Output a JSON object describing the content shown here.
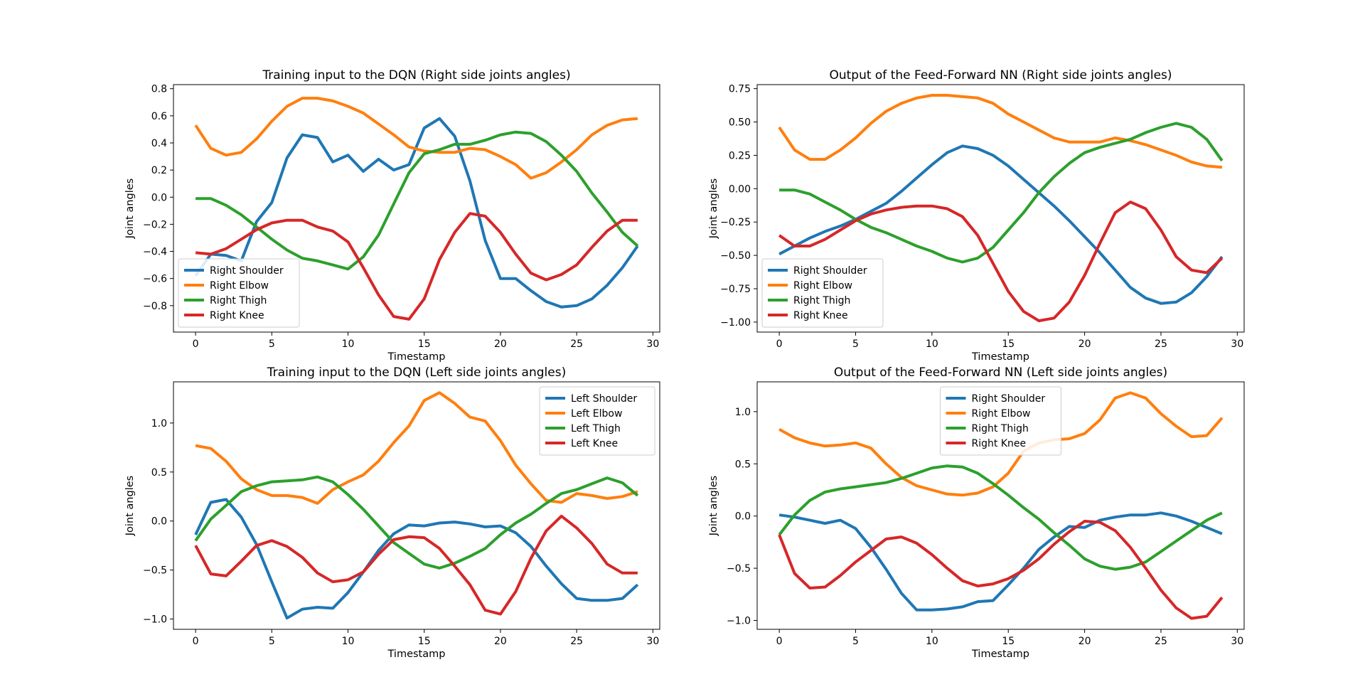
{
  "chart_data": [
    {
      "type": "line",
      "title": "Training input to the DQN (Right side joints angles)",
      "xlabel": "Timestamp",
      "ylabel": "Joint angles",
      "xlim": [
        -1.45,
        30.45
      ],
      "ylim": [
        -0.995,
        0.83
      ],
      "xticks": [
        0,
        5,
        10,
        15,
        20,
        25,
        30
      ],
      "yticks": [
        -0.8,
        -0.6,
        -0.4,
        -0.2,
        0.0,
        0.2,
        0.4,
        0.6,
        0.8
      ],
      "ytick_labels": [
        "−0.8",
        "−0.6",
        "−0.4",
        "−0.2",
        "0.0",
        "0.2",
        "0.4",
        "0.6",
        "0.8"
      ],
      "legend_position": "lower-left",
      "x": [
        0,
        1,
        2,
        3,
        4,
        5,
        6,
        7,
        8,
        9,
        10,
        11,
        12,
        13,
        14,
        15,
        16,
        17,
        18,
        19,
        20,
        21,
        22,
        23,
        24,
        25,
        26,
        27,
        28,
        29
      ],
      "series": [
        {
          "name": "Right Shoulder",
          "color": "#1f77b4",
          "values": [
            -0.58,
            -0.42,
            -0.43,
            -0.47,
            -0.18,
            -0.04,
            0.29,
            0.46,
            0.44,
            0.26,
            0.31,
            0.19,
            0.28,
            0.2,
            0.24,
            0.51,
            0.58,
            0.45,
            0.12,
            -0.32,
            -0.6,
            -0.6,
            -0.69,
            -0.77,
            -0.81,
            -0.8,
            -0.75,
            -0.65,
            -0.52,
            -0.36
          ]
        },
        {
          "name": "Right Elbow",
          "color": "#ff7f0e",
          "values": [
            0.53,
            0.36,
            0.31,
            0.33,
            0.43,
            0.56,
            0.67,
            0.73,
            0.73,
            0.71,
            0.67,
            0.62,
            0.54,
            0.46,
            0.37,
            0.34,
            0.33,
            0.33,
            0.36,
            0.35,
            0.3,
            0.24,
            0.14,
            0.18,
            0.26,
            0.35,
            0.46,
            0.53,
            0.57,
            0.58
          ]
        },
        {
          "name": "Right Thigh",
          "color": "#2ca02c",
          "values": [
            -0.01,
            -0.01,
            -0.06,
            -0.13,
            -0.22,
            -0.31,
            -0.39,
            -0.45,
            -0.47,
            -0.5,
            -0.53,
            -0.44,
            -0.28,
            -0.05,
            0.18,
            0.32,
            0.35,
            0.39,
            0.39,
            0.42,
            0.46,
            0.48,
            0.47,
            0.41,
            0.31,
            0.19,
            0.03,
            -0.11,
            -0.26,
            -0.36
          ]
        },
        {
          "name": "Right Knee",
          "color": "#d62728",
          "values": [
            -0.41,
            -0.42,
            -0.38,
            -0.31,
            -0.24,
            -0.19,
            -0.17,
            -0.17,
            -0.22,
            -0.25,
            -0.33,
            -0.52,
            -0.72,
            -0.88,
            -0.9,
            -0.75,
            -0.46,
            -0.26,
            -0.12,
            -0.14,
            -0.26,
            -0.42,
            -0.56,
            -0.61,
            -0.57,
            -0.5,
            -0.37,
            -0.25,
            -0.17,
            -0.17
          ]
        }
      ]
    },
    {
      "type": "line",
      "title": "Output of the Feed-Forward NN (Right side joints angles)",
      "xlabel": "Timestamp",
      "ylabel": "Joint angles",
      "xlim": [
        -1.45,
        30.45
      ],
      "ylim": [
        -1.075,
        0.78
      ],
      "xticks": [
        0,
        5,
        10,
        15,
        20,
        25,
        30
      ],
      "yticks": [
        -1.0,
        -0.75,
        -0.5,
        -0.25,
        0.0,
        0.25,
        0.5,
        0.75
      ],
      "ytick_labels": [
        "−1.00",
        "−0.75",
        "−0.50",
        "−0.25",
        "0.00",
        "0.25",
        "0.50",
        "0.75"
      ],
      "legend_position": "lower-left",
      "x": [
        0,
        1,
        2,
        3,
        4,
        5,
        6,
        7,
        8,
        9,
        10,
        11,
        12,
        13,
        14,
        15,
        16,
        17,
        18,
        19,
        20,
        21,
        22,
        23,
        24,
        25,
        26,
        27,
        28,
        29
      ],
      "series": [
        {
          "name": "Right Shoulder",
          "color": "#1f77b4",
          "values": [
            -0.49,
            -0.43,
            -0.37,
            -0.32,
            -0.28,
            -0.23,
            -0.17,
            -0.11,
            -0.02,
            0.08,
            0.18,
            0.27,
            0.32,
            0.3,
            0.25,
            0.17,
            0.07,
            -0.03,
            -0.13,
            -0.24,
            -0.36,
            -0.48,
            -0.61,
            -0.74,
            -0.82,
            -0.86,
            -0.85,
            -0.78,
            -0.66,
            -0.51
          ]
        },
        {
          "name": "Right Elbow",
          "color": "#ff7f0e",
          "values": [
            0.46,
            0.29,
            0.22,
            0.22,
            0.29,
            0.38,
            0.49,
            0.58,
            0.64,
            0.68,
            0.7,
            0.7,
            0.69,
            0.68,
            0.64,
            0.56,
            0.5,
            0.44,
            0.38,
            0.35,
            0.35,
            0.35,
            0.38,
            0.36,
            0.33,
            0.29,
            0.25,
            0.2,
            0.17,
            0.16
          ]
        },
        {
          "name": "Right Thigh",
          "color": "#2ca02c",
          "values": [
            -0.01,
            -0.01,
            -0.04,
            -0.1,
            -0.16,
            -0.23,
            -0.29,
            -0.33,
            -0.38,
            -0.43,
            -0.47,
            -0.52,
            -0.55,
            -0.52,
            -0.44,
            -0.31,
            -0.18,
            -0.03,
            0.09,
            0.19,
            0.27,
            0.31,
            0.34,
            0.37,
            0.42,
            0.46,
            0.49,
            0.46,
            0.37,
            0.21
          ]
        },
        {
          "name": "Right Knee",
          "color": "#d62728",
          "values": [
            -0.35,
            -0.43,
            -0.43,
            -0.38,
            -0.31,
            -0.24,
            -0.19,
            -0.16,
            -0.14,
            -0.13,
            -0.13,
            -0.15,
            -0.21,
            -0.35,
            -0.56,
            -0.77,
            -0.92,
            -0.99,
            -0.97,
            -0.85,
            -0.65,
            -0.41,
            -0.18,
            -0.1,
            -0.15,
            -0.31,
            -0.51,
            -0.61,
            -0.63,
            -0.52
          ]
        }
      ]
    },
    {
      "type": "line",
      "title": "Training input to the DQN (Left side joints angles)",
      "xlabel": "Timestamp",
      "ylabel": "Joint angles",
      "xlim": [
        -1.45,
        30.45
      ],
      "ylim": [
        -1.105,
        1.42
      ],
      "xticks": [
        0,
        5,
        10,
        15,
        20,
        25,
        30
      ],
      "yticks": [
        -1.0,
        -0.5,
        0.0,
        0.5,
        1.0
      ],
      "ytick_labels": [
        "−1.0",
        "−0.5",
        "0.0",
        "0.5",
        "1.0"
      ],
      "legend_position": "upper-right",
      "x": [
        0,
        1,
        2,
        3,
        4,
        5,
        6,
        7,
        8,
        9,
        10,
        11,
        12,
        13,
        14,
        15,
        16,
        17,
        18,
        19,
        20,
        21,
        22,
        23,
        24,
        25,
        26,
        27,
        28,
        29
      ],
      "series": [
        {
          "name": "Left Shoulder",
          "color": "#1f77b4",
          "values": [
            -0.14,
            0.19,
            0.22,
            0.04,
            -0.24,
            -0.62,
            -0.99,
            -0.9,
            -0.88,
            -0.89,
            -0.73,
            -0.52,
            -0.3,
            -0.13,
            -0.04,
            -0.05,
            -0.02,
            -0.01,
            -0.03,
            -0.06,
            -0.05,
            -0.12,
            -0.26,
            -0.46,
            -0.64,
            -0.79,
            -0.81,
            -0.81,
            -0.79,
            -0.65
          ]
        },
        {
          "name": "Left Elbow",
          "color": "#ff7f0e",
          "values": [
            0.77,
            0.74,
            0.61,
            0.43,
            0.32,
            0.26,
            0.26,
            0.24,
            0.18,
            0.32,
            0.4,
            0.47,
            0.61,
            0.8,
            0.97,
            1.23,
            1.31,
            1.2,
            1.06,
            1.02,
            0.82,
            0.57,
            0.38,
            0.21,
            0.19,
            0.28,
            0.26,
            0.23,
            0.25,
            0.3
          ]
        },
        {
          "name": "Left Thigh",
          "color": "#2ca02c",
          "values": [
            -0.2,
            0.02,
            0.16,
            0.3,
            0.36,
            0.4,
            0.41,
            0.42,
            0.45,
            0.4,
            0.27,
            0.12,
            -0.05,
            -0.22,
            -0.33,
            -0.44,
            -0.48,
            -0.43,
            -0.36,
            -0.28,
            -0.14,
            -0.02,
            0.07,
            0.18,
            0.28,
            0.32,
            0.38,
            0.44,
            0.39,
            0.26
          ]
        },
        {
          "name": "Left Knee",
          "color": "#d62728",
          "values": [
            -0.25,
            -0.54,
            -0.56,
            -0.41,
            -0.25,
            -0.2,
            -0.26,
            -0.37,
            -0.53,
            -0.62,
            -0.6,
            -0.52,
            -0.34,
            -0.19,
            -0.16,
            -0.17,
            -0.28,
            -0.46,
            -0.65,
            -0.91,
            -0.95,
            -0.72,
            -0.38,
            -0.1,
            0.05,
            -0.07,
            -0.23,
            -0.44,
            -0.53,
            -0.53
          ]
        }
      ]
    },
    {
      "type": "line",
      "title": "Output of the Feed-Forward NN (Left side joints angles)",
      "xlabel": "Timestamp",
      "ylabel": "Joint angles",
      "xlim": [
        -1.45,
        30.45
      ],
      "ylim": [
        -1.085,
        1.285
      ],
      "xticks": [
        0,
        5,
        10,
        15,
        20,
        25,
        30
      ],
      "yticks": [
        -1.0,
        -0.5,
        0.0,
        0.5,
        1.0
      ],
      "ytick_labels": [
        "−1.0",
        "−0.5",
        "0.0",
        "0.5",
        "1.0"
      ],
      "legend_position": "upper-center",
      "x": [
        0,
        1,
        2,
        3,
        4,
        5,
        6,
        7,
        8,
        9,
        10,
        11,
        12,
        13,
        14,
        15,
        16,
        17,
        18,
        19,
        20,
        21,
        22,
        23,
        24,
        25,
        26,
        27,
        28,
        29
      ],
      "series": [
        {
          "name": "Right Shoulder",
          "color": "#1f77b4",
          "values": [
            0.01,
            -0.01,
            -0.04,
            -0.07,
            -0.04,
            -0.12,
            -0.3,
            -0.51,
            -0.74,
            -0.9,
            -0.9,
            -0.89,
            -0.87,
            -0.82,
            -0.81,
            -0.66,
            -0.5,
            -0.32,
            -0.2,
            -0.1,
            -0.11,
            -0.04,
            -0.01,
            0.01,
            0.01,
            0.03,
            0.0,
            -0.05,
            -0.11,
            -0.17
          ]
        },
        {
          "name": "Right Elbow",
          "color": "#ff7f0e",
          "values": [
            0.83,
            0.75,
            0.7,
            0.67,
            0.68,
            0.7,
            0.65,
            0.5,
            0.37,
            0.29,
            0.25,
            0.21,
            0.2,
            0.22,
            0.28,
            0.41,
            0.62,
            0.7,
            0.73,
            0.74,
            0.79,
            0.92,
            1.13,
            1.18,
            1.13,
            0.98,
            0.86,
            0.76,
            0.77,
            0.94
          ]
        },
        {
          "name": "Right Thigh",
          "color": "#2ca02c",
          "values": [
            -0.18,
            0.01,
            0.15,
            0.23,
            0.26,
            0.28,
            0.3,
            0.32,
            0.36,
            0.41,
            0.46,
            0.48,
            0.47,
            0.41,
            0.31,
            0.2,
            0.08,
            -0.03,
            -0.16,
            -0.28,
            -0.41,
            -0.48,
            -0.51,
            -0.49,
            -0.44,
            -0.34,
            -0.24,
            -0.14,
            -0.04,
            0.03
          ]
        },
        {
          "name": "Right Knee",
          "color": "#d62728",
          "values": [
            -0.18,
            -0.55,
            -0.69,
            -0.68,
            -0.57,
            -0.44,
            -0.33,
            -0.22,
            -0.2,
            -0.26,
            -0.37,
            -0.5,
            -0.62,
            -0.67,
            -0.65,
            -0.6,
            -0.52,
            -0.41,
            -0.27,
            -0.15,
            -0.05,
            -0.06,
            -0.14,
            -0.3,
            -0.5,
            -0.71,
            -0.88,
            -0.98,
            -0.96,
            -0.78
          ]
        }
      ]
    }
  ]
}
